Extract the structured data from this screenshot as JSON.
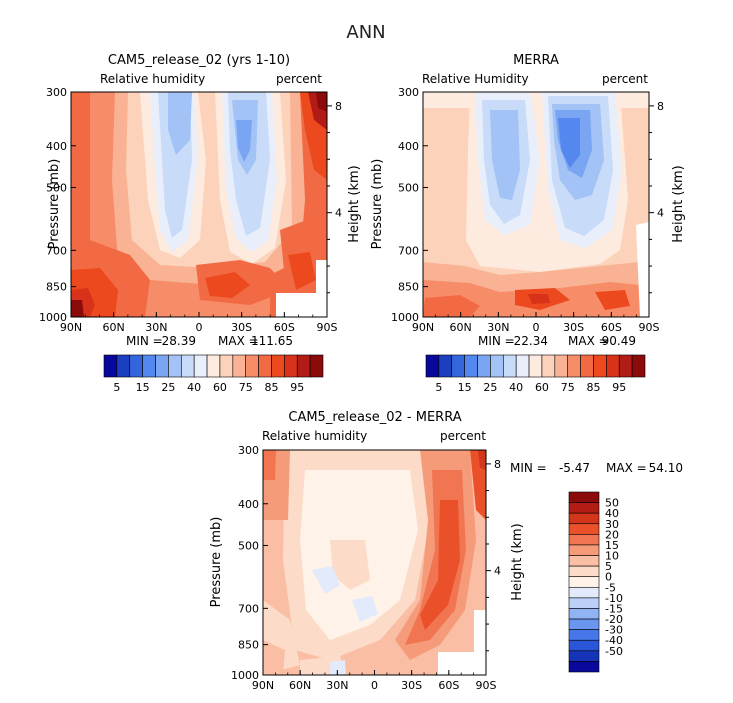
{
  "figure": {
    "title": "ANN"
  },
  "colors": {
    "abs_scale": [
      "#08089a",
      "#1a3fbf",
      "#3366dd",
      "#5588ee",
      "#7aa5f2",
      "#a3c2f6",
      "#c8dbf8",
      "#e9eefb",
      "#fdebdf",
      "#fcd2ba",
      "#f9b394",
      "#f68d68",
      "#f26a43",
      "#ec4a1e",
      "#d9321a",
      "#b31b16",
      "#8b0a0a"
    ],
    "diff_scale": [
      "#08089a",
      "#1534b8",
      "#2a55d6",
      "#4677ea",
      "#6a96f0",
      "#92b4f4",
      "#bcd0f7",
      "#e2eafb",
      "#fff2e8",
      "#fcdcc8",
      "#fabea4",
      "#f69b7a",
      "#f27552",
      "#ea512a",
      "#d4361b",
      "#b21c15",
      "#8b0a0a"
    ]
  },
  "chart_data": [
    {
      "type": "heatmap",
      "panel": "cam",
      "title": "CAM5_release_02 (yrs 1-10)",
      "left_label": "Relative humidity",
      "right_label": "percent",
      "ylabel": "Pressure (mb)",
      "y2label": "Height (km)",
      "x": [
        "90N",
        "60N",
        "30N",
        "0",
        "30S",
        "60S",
        "90S"
      ],
      "x_values": [
        90,
        60,
        30,
        0,
        -30,
        -60,
        -90
      ],
      "y_ticks": [
        "300",
        "400",
        "500",
        "700",
        "850",
        "1000"
      ],
      "y_values": [
        300,
        400,
        500,
        700,
        850,
        1000
      ],
      "y2_ticks": [
        "8",
        "4"
      ],
      "y2_values": [
        8,
        4
      ],
      "min_label": "MIN =",
      "min": "28.39",
      "max_label": "MAX =",
      "max": "111.65",
      "colorbar_labels": [
        "5",
        "15",
        "25",
        "40",
        "60",
        "75",
        "85",
        "95"
      ],
      "levels": [
        5,
        10,
        15,
        20,
        25,
        30,
        35,
        40,
        50,
        60,
        65,
        70,
        75,
        80,
        85,
        90,
        95
      ],
      "zlim": [
        28.39,
        111.65
      ]
    },
    {
      "type": "heatmap",
      "panel": "merra",
      "title": "MERRA",
      "left_label": "Relative Humidity",
      "right_label": "percent",
      "ylabel": "Pressure (mb)",
      "y2label": "Height (km)",
      "x": [
        "90N",
        "60N",
        "30N",
        "0",
        "30S",
        "60S",
        "90S"
      ],
      "x_values": [
        90,
        60,
        30,
        0,
        -30,
        -60,
        -90
      ],
      "y_ticks": [
        "300",
        "400",
        "500",
        "700",
        "850",
        "1000"
      ],
      "y_values": [
        300,
        400,
        500,
        700,
        850,
        1000
      ],
      "y2_ticks": [
        "8",
        "4"
      ],
      "y2_values": [
        8,
        4
      ],
      "min_label": "MIN =",
      "min": "22.34",
      "max_label": "MAX =",
      "max": "90.49",
      "colorbar_labels": [
        "5",
        "15",
        "25",
        "40",
        "60",
        "75",
        "85",
        "95"
      ],
      "levels": [
        5,
        10,
        15,
        20,
        25,
        30,
        35,
        40,
        50,
        60,
        65,
        70,
        75,
        80,
        85,
        90,
        95
      ],
      "zlim": [
        22.34,
        90.49
      ]
    },
    {
      "type": "heatmap",
      "panel": "diff",
      "title": "CAM5_release_02 - MERRA",
      "left_label": "Relative humidity",
      "right_label": "percent",
      "ylabel": "Pressure (mb)",
      "y2label": "Height (km)",
      "x": [
        "90N",
        "60N",
        "30N",
        "0",
        "30S",
        "60S",
        "90S"
      ],
      "x_values": [
        90,
        60,
        30,
        0,
        -30,
        -60,
        -90
      ],
      "y_ticks": [
        "300",
        "400",
        "500",
        "700",
        "850",
        "1000"
      ],
      "y_values": [
        300,
        400,
        500,
        700,
        850,
        1000
      ],
      "y2_ticks": [
        "8",
        "4"
      ],
      "y2_values": [
        8,
        4
      ],
      "min_label": "MIN =",
      "min": "-5.47",
      "max_label": "MAX =",
      "max": "54.10",
      "colorbar_labels": [
        "50",
        "40",
        "30",
        "20",
        "15",
        "10",
        "5",
        "0",
        "-5",
        "-10",
        "-15",
        "-20",
        "-30",
        "-40",
        "-50"
      ],
      "levels": [
        -50,
        -40,
        -30,
        -20,
        -15,
        -10,
        -5,
        0,
        5,
        10,
        15,
        20,
        30,
        40,
        50
      ],
      "zlim": [
        -5.47,
        54.1
      ]
    }
  ]
}
